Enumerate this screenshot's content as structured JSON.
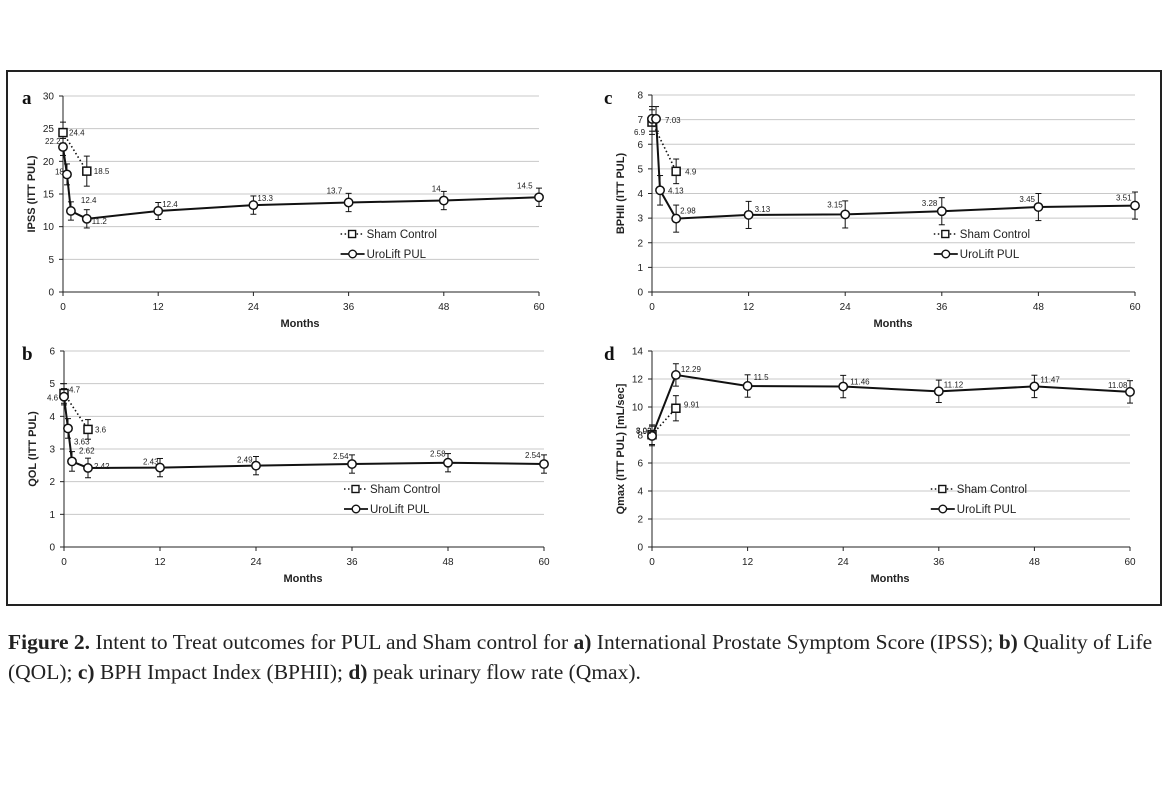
{
  "chart_data": [
    {
      "panel": "a",
      "type": "line",
      "ylabel": "IPSS (ITT PUL)",
      "xlabel": "Months",
      "xlim": [
        0,
        60
      ],
      "ylim": [
        0,
        30
      ],
      "xticks": [
        0,
        12,
        24,
        36,
        48,
        60
      ],
      "yticks": [
        0,
        5,
        10,
        15,
        20,
        25,
        30
      ],
      "series": [
        {
          "name": "Sham Control",
          "marker": "square",
          "style": "dotted",
          "x": [
            0,
            3
          ],
          "y": [
            24.4,
            18.5
          ],
          "err": [
            1.6,
            2.3
          ],
          "labels": [
            "24.4",
            "18.5"
          ]
        },
        {
          "name": "UroLift PUL",
          "marker": "circle",
          "style": "solid",
          "x": [
            0,
            0.5,
            1,
            3,
            12,
            24,
            36,
            48,
            60
          ],
          "y": [
            22.2,
            18,
            12.4,
            11.2,
            12.4,
            13.3,
            13.7,
            14,
            14.5
          ],
          "err": [
            1.3,
            1.6,
            1.4,
            1.4,
            1.3,
            1.4,
            1.4,
            1.4,
            1.4
          ],
          "labels": [
            "22.2",
            "18",
            "12.4",
            "11.2",
            "12.4",
            "13.3",
            "13.7",
            "14",
            "14.5"
          ]
        }
      ]
    },
    {
      "panel": "b",
      "type": "line",
      "ylabel": "QOL (ITT PUL)",
      "xlabel": "Months",
      "xlim": [
        0,
        60
      ],
      "ylim": [
        0,
        6
      ],
      "xticks": [
        0,
        12,
        24,
        36,
        48,
        60
      ],
      "yticks": [
        0,
        1,
        2,
        3,
        4,
        5,
        6
      ],
      "series": [
        {
          "name": "Sham Control",
          "marker": "square",
          "style": "dotted",
          "x": [
            0,
            3
          ],
          "y": [
            4.7,
            3.6
          ],
          "err": [
            0.3,
            0.3
          ],
          "labels": [
            "4.7",
            "3.6"
          ]
        },
        {
          "name": "UroLift PUL",
          "marker": "circle",
          "style": "solid",
          "x": [
            0,
            0.5,
            1,
            3,
            12,
            24,
            36,
            48,
            60
          ],
          "y": [
            4.6,
            3.63,
            2.62,
            2.42,
            2.43,
            2.49,
            2.54,
            2.58,
            2.54
          ],
          "err": [
            0.25,
            0.3,
            0.3,
            0.3,
            0.28,
            0.28,
            0.28,
            0.28,
            0.28
          ],
          "labels": [
            "4.6",
            "3.63",
            "2.62",
            "2.42",
            "2.43",
            "2.49",
            "2.54",
            "2.58",
            "2.54"
          ]
        }
      ]
    },
    {
      "panel": "c",
      "type": "line",
      "ylabel": "BPHII (ITT PUL)",
      "xlabel": "Months",
      "xlim": [
        0,
        60
      ],
      "ylim": [
        0,
        8
      ],
      "xticks": [
        0,
        12,
        24,
        36,
        48,
        60
      ],
      "yticks": [
        0,
        1,
        2,
        3,
        4,
        5,
        6,
        7,
        8
      ],
      "series": [
        {
          "name": "Sham Control",
          "marker": "square",
          "style": "dotted",
          "x": [
            0,
            3
          ],
          "y": [
            6.9,
            4.9
          ],
          "err": [
            0.5,
            0.5
          ],
          "labels": [
            "6.9",
            "4.9"
          ]
        },
        {
          "name": "UroLift PUL",
          "marker": "circle",
          "style": "solid",
          "x": [
            0,
            0.5,
            1,
            3,
            12,
            24,
            36,
            48,
            60
          ],
          "y": [
            7.03,
            7.03,
            4.13,
            2.98,
            3.13,
            3.15,
            3.28,
            3.45,
            3.51
          ],
          "err": [
            0.5,
            0.5,
            0.6,
            0.55,
            0.55,
            0.55,
            0.55,
            0.55,
            0.55
          ],
          "labels": [
            "",
            "7.03",
            "4.13",
            "2.98",
            "3.13",
            "3.15",
            "3.28",
            "3.45",
            "3.51"
          ]
        }
      ]
    },
    {
      "panel": "d",
      "type": "line",
      "ylabel": "Qmax (ITT PUL) [mL/sec]",
      "xlabel": "Months",
      "xlim": [
        0,
        60
      ],
      "ylim": [
        0,
        14
      ],
      "xticks": [
        0,
        12,
        24,
        36,
        48,
        60
      ],
      "yticks": [
        0,
        2,
        4,
        6,
        8,
        10,
        12,
        14
      ],
      "series": [
        {
          "name": "Sham Control",
          "marker": "square",
          "style": "dotted",
          "x": [
            0,
            3
          ],
          "y": [
            8.02,
            9.91
          ],
          "err": [
            0.7,
            0.9
          ],
          "labels": [
            "8.02",
            "9.91"
          ]
        },
        {
          "name": "UroLift PUL",
          "marker": "circle",
          "style": "solid",
          "x": [
            0,
            3,
            12,
            24,
            36,
            48,
            60
          ],
          "y": [
            7.93,
            12.29,
            11.5,
            11.46,
            11.12,
            11.47,
            11.08
          ],
          "err": [
            0.7,
            0.8,
            0.8,
            0.8,
            0.8,
            0.8,
            0.8
          ],
          "labels": [
            "7.93",
            "12.29",
            "11.5",
            "11.46",
            "11.12",
            "11.47",
            "11.08"
          ]
        }
      ]
    }
  ],
  "caption": {
    "figure_label": "Figure 2.",
    "text_1": " Intent to Treat outcomes for PUL and Sham control for ",
    "part_a": "a)",
    "text_a": " International Prostate Symptom Score (IPSS); ",
    "part_b": "b)",
    "text_b": " Quality of Life (QOL); ",
    "part_c": "c)",
    "text_c": " BPH Impact Index (BPHII); ",
    "part_d": "d)",
    "text_d": " peak urinary flow rate (Qmax)."
  }
}
